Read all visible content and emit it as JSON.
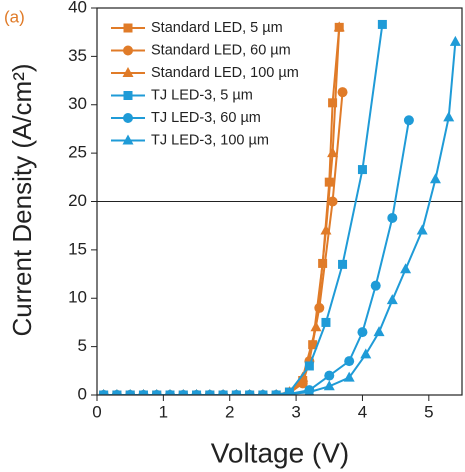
{
  "chart_data": {
    "type": "line",
    "panel_label": "(a)",
    "panel_label_color": "#e07b28",
    "xlabel": "Voltage (V)",
    "ylabel": "Current Density (A/cm²)",
    "xlim": [
      0,
      5.5
    ],
    "ylim": [
      0,
      40
    ],
    "xticks": [
      0,
      1,
      2,
      3,
      4,
      5
    ],
    "yticks": [
      0,
      5,
      10,
      15,
      20,
      25,
      30,
      35,
      40
    ],
    "hline": 20,
    "legend": "upper-left",
    "series": [
      {
        "name": "Standard LED, 5 µm",
        "color": "#e07b28",
        "marker": "square",
        "x": [
          0.1,
          0.3,
          0.5,
          0.7,
          0.9,
          1.1,
          1.3,
          1.5,
          1.7,
          1.9,
          2.1,
          2.3,
          2.5,
          2.7,
          2.9,
          3.1,
          3.25,
          3.4,
          3.5,
          3.55,
          3.65
        ],
        "values": [
          0,
          0,
          0,
          0,
          0,
          0,
          0,
          0,
          0,
          0,
          0,
          0,
          0,
          0,
          0.3,
          1.5,
          5.2,
          13.6,
          22,
          30.2,
          38
        ]
      },
      {
        "name": "Standard LED, 60 µm",
        "color": "#e07b28",
        "marker": "circle",
        "x": [
          0.1,
          0.3,
          0.5,
          0.7,
          0.9,
          1.1,
          1.3,
          1.5,
          1.7,
          1.9,
          2.1,
          2.3,
          2.5,
          2.7,
          2.9,
          3.1,
          3.2,
          3.35,
          3.55,
          3.7
        ],
        "values": [
          0,
          0,
          0,
          0,
          0,
          0,
          0,
          0,
          0,
          0,
          0,
          0,
          0,
          0,
          0.2,
          1.2,
          3.5,
          9,
          20,
          31.3
        ]
      },
      {
        "name": "Standard LED, 100 µm",
        "color": "#e07b28",
        "marker": "triangle",
        "x": [
          0.1,
          0.3,
          0.5,
          0.7,
          0.9,
          1.1,
          1.3,
          1.5,
          1.7,
          1.9,
          2.1,
          2.3,
          2.5,
          2.7,
          2.9,
          3.1,
          3.3,
          3.45,
          3.55,
          3.65
        ],
        "values": [
          0,
          0,
          0,
          0,
          0,
          0,
          0,
          0,
          0,
          0,
          0,
          0,
          0,
          0,
          0.3,
          1.8,
          7,
          17,
          25,
          38
        ]
      },
      {
        "name": "TJ LED-3, 5 µm",
        "color": "#1f9bd7",
        "marker": "square",
        "x": [
          0.1,
          0.3,
          0.5,
          0.7,
          0.9,
          1.1,
          1.3,
          1.5,
          1.7,
          1.9,
          2.1,
          2.3,
          2.5,
          2.7,
          2.9,
          3.2,
          3.45,
          3.7,
          4.0,
          4.3
        ],
        "values": [
          0,
          0,
          0,
          0,
          0,
          0,
          0,
          0,
          0,
          0,
          0,
          0,
          0,
          0,
          0.3,
          3,
          7.5,
          13.5,
          23.3,
          38.3
        ]
      },
      {
        "name": "TJ LED-3, 60 µm",
        "color": "#1f9bd7",
        "marker": "circle",
        "x": [
          0.1,
          0.3,
          0.5,
          0.7,
          0.9,
          1.1,
          1.3,
          1.5,
          1.7,
          1.9,
          2.1,
          2.3,
          2.5,
          2.7,
          2.9,
          3.2,
          3.5,
          3.8,
          4.0,
          4.2,
          4.45,
          4.7
        ],
        "values": [
          0,
          0,
          0,
          0,
          0,
          0,
          0,
          0,
          0,
          0,
          0,
          0,
          0,
          0,
          0.1,
          0.5,
          2,
          3.5,
          6.5,
          11.3,
          18.3,
          28.4
        ]
      },
      {
        "name": "TJ LED-3, 100 µm",
        "color": "#1f9bd7",
        "marker": "triangle",
        "x": [
          0.1,
          0.3,
          0.5,
          0.7,
          0.9,
          1.1,
          1.3,
          1.5,
          1.7,
          1.9,
          2.1,
          2.3,
          2.5,
          2.7,
          2.9,
          3.2,
          3.5,
          3.8,
          4.05,
          4.25,
          4.45,
          4.65,
          4.9,
          5.1,
          5.3,
          5.4
        ],
        "values": [
          0,
          0,
          0,
          0,
          0,
          0,
          0,
          0,
          0,
          0,
          0,
          0,
          0,
          0,
          0.1,
          0.3,
          0.9,
          1.8,
          4.2,
          6.5,
          9.8,
          13,
          17,
          22.3,
          28.7,
          36.5
        ]
      }
    ]
  }
}
